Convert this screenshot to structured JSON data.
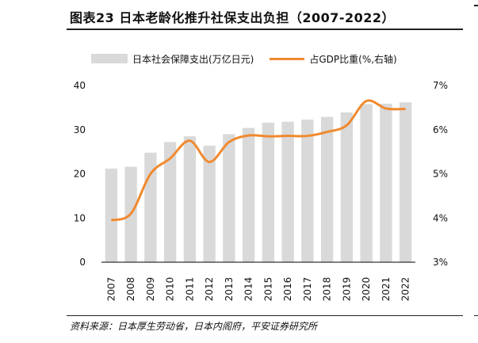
{
  "figure": {
    "title": "图表23    日本老龄化推升社保支出负担（2007-2022）",
    "source": "资料来源：日本厚生劳动省，日本内阁府，平安证券研究所"
  },
  "legend": {
    "bar_label": "日本社会保障支出(万亿日元)",
    "line_label": "占GDP比重(%,右轴)"
  },
  "colors": {
    "bar": "#d9d9d9",
    "line": "#f08a2e",
    "axis": "#000000"
  },
  "chart_data": {
    "type": "bar",
    "categories": [
      "2007",
      "2008",
      "2009",
      "2010",
      "2011",
      "2012",
      "2013",
      "2014",
      "2015",
      "2016",
      "2017",
      "2018",
      "2019",
      "2020",
      "2021",
      "2022"
    ],
    "series": [
      {
        "name": "日本社会保障支出(万亿日元)",
        "type": "bar",
        "axis": "left",
        "values": [
          21.2,
          21.6,
          24.8,
          27.2,
          28.5,
          26.4,
          29.0,
          30.4,
          31.6,
          31.8,
          32.3,
          32.9,
          33.9,
          35.8,
          35.9,
          36.2
        ]
      },
      {
        "name": "占GDP比重(%,右轴)",
        "type": "line",
        "axis": "right",
        "values": [
          3.95,
          4.1,
          5.0,
          5.35,
          5.75,
          5.27,
          5.72,
          5.87,
          5.85,
          5.86,
          5.86,
          5.95,
          6.1,
          6.65,
          6.48,
          6.47
        ]
      }
    ],
    "y_left": {
      "ylim": [
        0,
        40
      ],
      "ticks": [
        "0",
        "10",
        "20",
        "30",
        "40"
      ]
    },
    "y_right": {
      "ylim": [
        3,
        7
      ],
      "ticks": [
        "3%",
        "4%",
        "5%",
        "6%",
        "7%"
      ]
    },
    "grid": false,
    "legend_position": "top"
  }
}
